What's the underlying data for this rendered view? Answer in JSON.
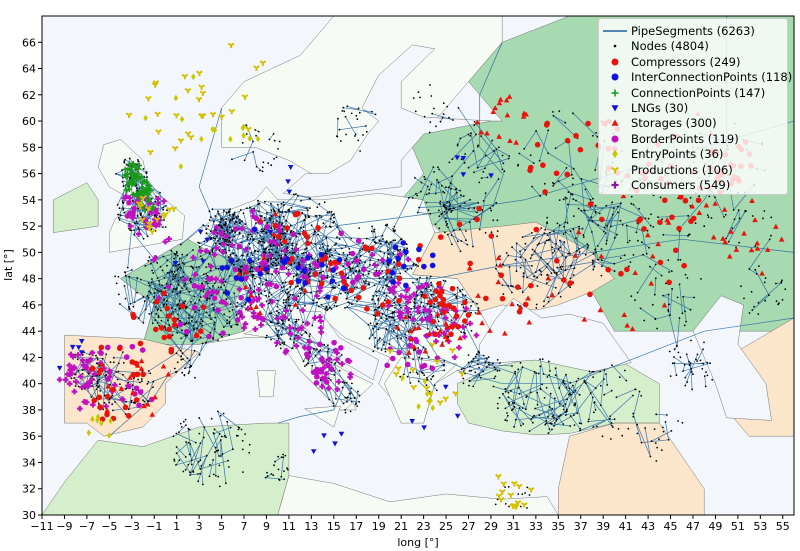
{
  "axes": {
    "xlabel": "long [°]",
    "ylabel": "lat [°]",
    "xlim": [
      -11,
      56
    ],
    "ylim": [
      30,
      68
    ],
    "xticks": [
      "−11",
      "−9",
      "−7",
      "−5",
      "−3",
      "−1",
      "1",
      "3",
      "5",
      "7",
      "9",
      "11",
      "13",
      "15",
      "17",
      "19",
      "21",
      "23",
      "25",
      "27",
      "29",
      "31",
      "33",
      "35",
      "37",
      "39",
      "41",
      "43",
      "45",
      "47",
      "49",
      "51",
      "53",
      "55"
    ],
    "yticks": [
      "30",
      "32",
      "34",
      "36",
      "38",
      "40",
      "42",
      "44",
      "46",
      "48",
      "50",
      "52",
      "54",
      "56",
      "58",
      "60",
      "62",
      "64",
      "66"
    ]
  },
  "colors": {
    "sea": "#f3f7fc",
    "pipe": "#1f5f9e",
    "land_green": "#a7dab0",
    "land_lightgreen": "#d5efcd",
    "land_peach": "#fbe6cc",
    "land_cream": "#fdf8dc",
    "land_white": "#f6fbf6"
  },
  "legend": [
    {
      "label": "PipeSegments (6263)",
      "marker": "line",
      "color": "#1f5f9e"
    },
    {
      "label": "Nodes (4804)",
      "marker": "dot",
      "color": "#000000"
    },
    {
      "label": "Compressors (249)",
      "marker": "circle",
      "color": "#e8140c"
    },
    {
      "label": "InterConnectionPoints (118)",
      "marker": "circle",
      "color": "#1010e0"
    },
    {
      "label": "ConnectionPoints (147)",
      "marker": "plus",
      "color": "#1a9a1a"
    },
    {
      "label": "LNGs (30)",
      "marker": "triangle-down",
      "color": "#1010e0"
    },
    {
      "label": "Storages (300)",
      "marker": "triangle-up",
      "color": "#e8140c"
    },
    {
      "label": "BorderPoints (119)",
      "marker": "circle",
      "color": "#c010c0"
    },
    {
      "label": "EntryPoints (36)",
      "marker": "diamond",
      "color": "#c8c800"
    },
    {
      "label": "Productions (106)",
      "marker": "tri-down",
      "color": "#d4c000"
    },
    {
      "label": "Consumers (549)",
      "marker": "plus-filled",
      "color": "#8a1a9a"
    }
  ],
  "chart_data": {
    "type": "scatter",
    "xlabel": "long [°]",
    "ylabel": "lat [°]",
    "xlim": [
      -11,
      56
    ],
    "ylim": [
      30,
      68
    ],
    "grid": false,
    "legend_position": "top-right",
    "series": [
      {
        "name": "PipeSegments (6263)",
        "count": 6263
      },
      {
        "name": "Nodes (4804)",
        "count": 4804
      },
      {
        "name": "Compressors (249)",
        "count": 249
      },
      {
        "name": "InterConnectionPoints (118)",
        "count": 118
      },
      {
        "name": "ConnectionPoints (147)",
        "count": 147
      },
      {
        "name": "LNGs (30)",
        "count": 30
      },
      {
        "name": "Storages (300)",
        "count": 300
      },
      {
        "name": "BorderPoints (119)",
        "count": 119
      },
      {
        "name": "EntryPoints (36)",
        "count": 36
      },
      {
        "name": "Productions (106)",
        "count": 106
      },
      {
        "name": "Consumers (549)",
        "count": 549
      }
    ]
  }
}
